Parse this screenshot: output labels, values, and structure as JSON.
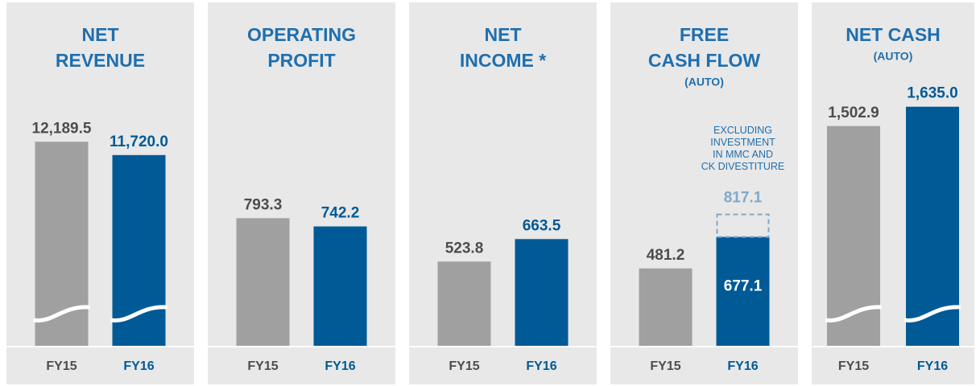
{
  "chart_data": [
    {
      "type": "bar",
      "title": [
        "NET",
        "REVENUE"
      ],
      "categories": [
        "FY15",
        "FY16"
      ],
      "values": [
        12189.5,
        11720.0
      ],
      "value_labels": [
        "12,189.5",
        "11,720.0"
      ],
      "colors": [
        "#a0a0a0",
        "#005a96"
      ],
      "ylim": [
        5000,
        13500
      ],
      "axis_break": true
    },
    {
      "type": "bar",
      "title": [
        "OPERATING",
        "PROFIT"
      ],
      "categories": [
        "FY15",
        "FY16"
      ],
      "values": [
        793.3,
        742.2
      ],
      "value_labels": [
        "793.3",
        "742.2"
      ],
      "colors": [
        "#a0a0a0",
        "#005a96"
      ],
      "ylim": [
        0,
        1500
      ]
    },
    {
      "type": "bar",
      "title": [
        "NET",
        "INCOME *"
      ],
      "categories": [
        "FY15",
        "FY16"
      ],
      "values": [
        523.8,
        663.5
      ],
      "value_labels": [
        "523.8",
        "663.5"
      ],
      "colors": [
        "#a0a0a0",
        "#005a96"
      ],
      "ylim": [
        0,
        1500
      ]
    },
    {
      "type": "bar",
      "title": [
        "FREE",
        "CASH FLOW"
      ],
      "subtitle": "(AUTO)",
      "categories": [
        "FY15",
        "FY16"
      ],
      "values": [
        481.2,
        677.1
      ],
      "value_labels": [
        "481.2",
        "677.1"
      ],
      "colors": [
        "#a0a0a0",
        "#005a96"
      ],
      "ylim": [
        0,
        1500
      ],
      "adjusted": {
        "annotation": [
          "EXCLUDING",
          "INVESTMENT",
          "IN MMC AND",
          "CK DIVESTITURE"
        ],
        "value": 817.1,
        "value_label": "817.1",
        "color": "#7fa9cc"
      }
    },
    {
      "type": "bar",
      "title": [
        "NET CASH"
      ],
      "subtitle": "(AUTO)",
      "categories": [
        "FY15",
        "FY16"
      ],
      "values": [
        1502.9,
        1635.0
      ],
      "value_labels": [
        "1,502.9",
        "1,635.0"
      ],
      "colors": [
        "#a0a0a0",
        "#005a96"
      ],
      "ylim": [
        0,
        1650
      ],
      "axis_break": true
    }
  ]
}
